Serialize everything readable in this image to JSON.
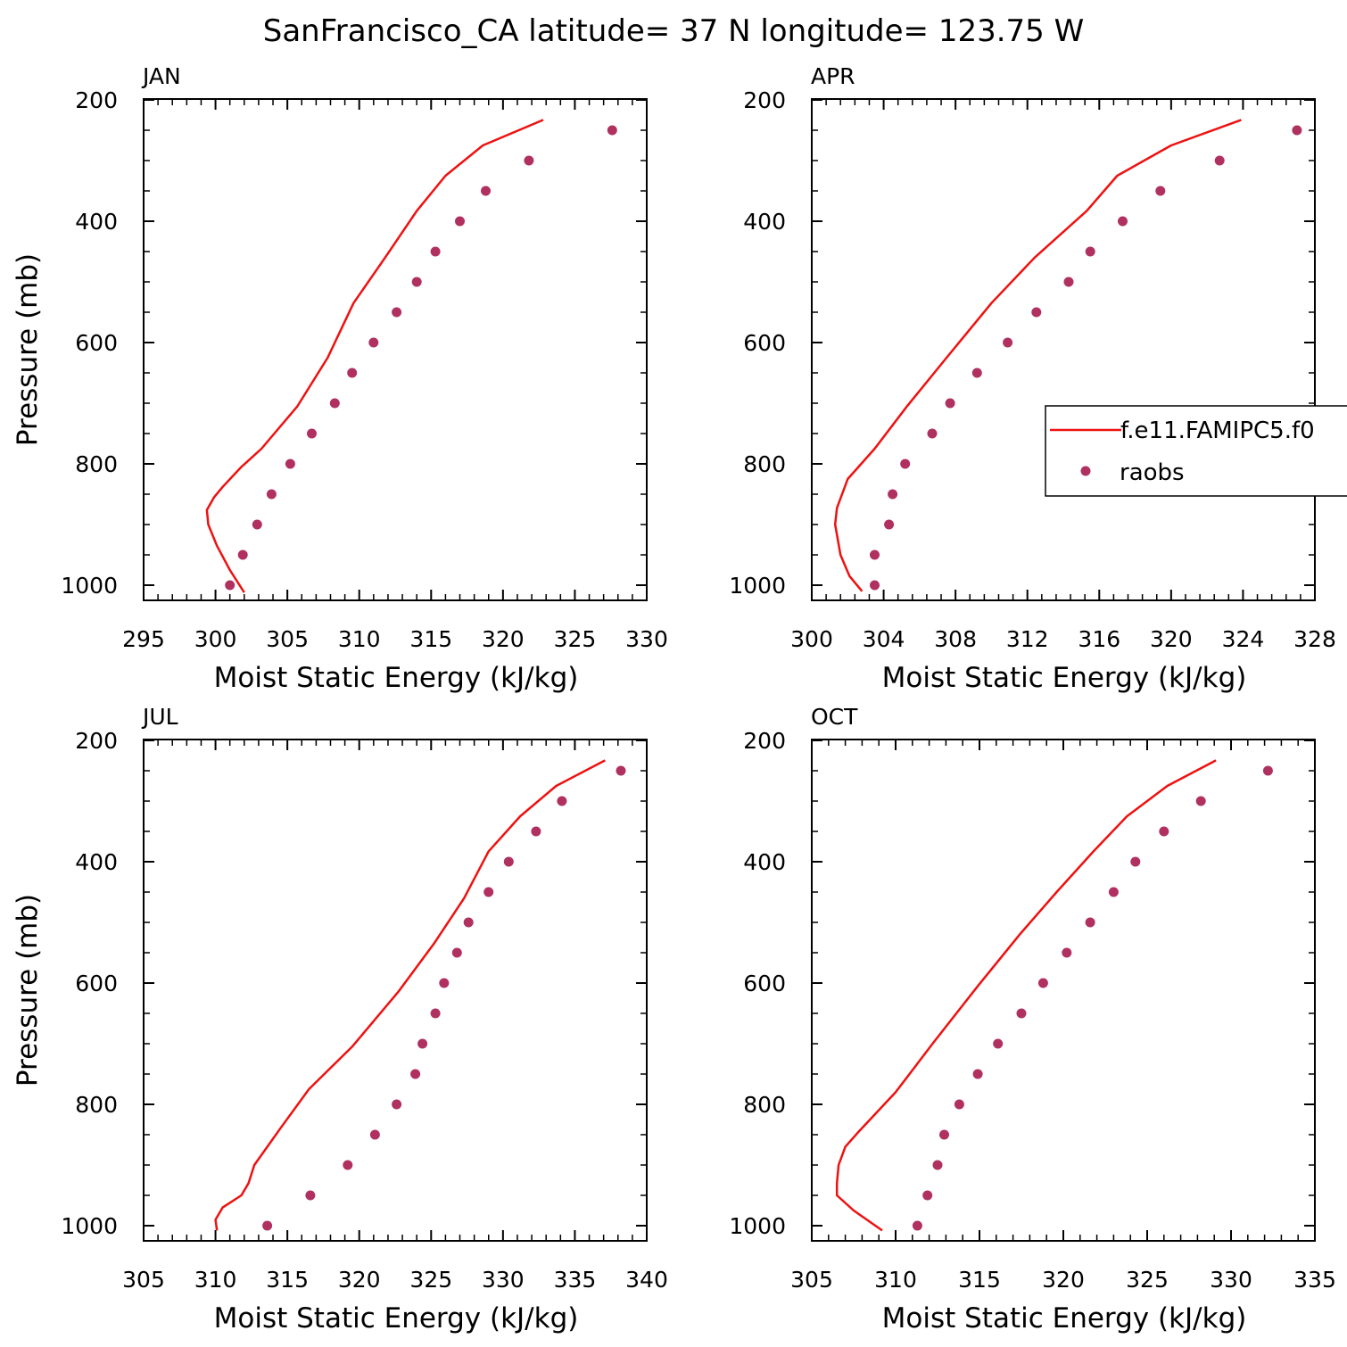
{
  "title": "SanFrancisco_CA  latitude= 37 N longitude= 123.75 W",
  "colors": {
    "model": "#ee1111",
    "obs": "#b03060",
    "axis": "#000000"
  },
  "legend": {
    "placement": "right-middle of APR panel",
    "entries": [
      {
        "label": "f.e11.FAMIPC5.f0",
        "style": "line",
        "color": "#ee1111"
      },
      {
        "label": "raobs",
        "style": "marker",
        "color": "#b03060"
      }
    ]
  },
  "chart_data": [
    {
      "type": "line",
      "panel_label": "JAN",
      "xlabel": "Moist Static Energy (kJ/kg)",
      "ylabel": "Pressure (mb)",
      "xlim": [
        295,
        330
      ],
      "xticks": [
        "295",
        "300",
        "305",
        "310",
        "315",
        "320",
        "325",
        "330"
      ],
      "ylim": [
        200,
        1000
      ],
      "yticks": [
        "200",
        "400",
        "600",
        "800",
        "1000"
      ],
      "series": [
        {
          "x": [
            322.8,
            318.6,
            316.0,
            314.0,
            311.8,
            309.6,
            307.8,
            305.7,
            303.2,
            301.8,
            300.5,
            299.9,
            299.4,
            299.5,
            300.1,
            301.0,
            302.0
          ],
          "y": [
            233,
            275,
            325,
            383,
            460,
            535,
            625,
            705,
            775,
            805,
            838,
            855,
            876,
            900,
            935,
            975,
            1012
          ]
        },
        {
          "x": [
            327.6,
            321.8,
            318.8,
            317.0,
            315.3,
            314.0,
            312.6,
            311.0,
            309.5,
            308.3,
            306.7,
            305.2,
            303.9,
            302.9,
            301.9,
            301.0
          ],
          "y": [
            250,
            300,
            350,
            400,
            450,
            500,
            550,
            600,
            650,
            700,
            750,
            800,
            850,
            900,
            950,
            1000
          ]
        }
      ]
    },
    {
      "type": "line",
      "panel_label": "APR",
      "xlabel": "Moist Static Energy (kJ/kg)",
      "ylabel": "",
      "xlim": [
        300,
        328
      ],
      "xticks": [
        "300",
        "304",
        "308",
        "312",
        "316",
        "320",
        "324",
        "328"
      ],
      "ylim": [
        200,
        1000
      ],
      "yticks": [
        "200",
        "400",
        "600",
        "800",
        "1000"
      ],
      "series": [
        {
          "x": [
            323.9,
            320.0,
            317.0,
            315.3,
            312.4,
            310.0,
            307.5,
            305.3,
            303.5,
            302.0,
            301.4,
            301.3,
            301.6,
            302.1,
            302.8
          ],
          "y": [
            233,
            275,
            325,
            383,
            460,
            535,
            625,
            705,
            775,
            825,
            873,
            900,
            950,
            985,
            1010
          ]
        },
        {
          "x": [
            327.0,
            322.7,
            319.4,
            317.3,
            315.5,
            314.3,
            312.5,
            310.9,
            309.2,
            307.7,
            306.7,
            305.2,
            304.5,
            304.3,
            303.5,
            303.5
          ],
          "y": [
            250,
            300,
            350,
            400,
            450,
            500,
            550,
            600,
            650,
            700,
            750,
            800,
            850,
            900,
            950,
            1000
          ]
        }
      ]
    },
    {
      "type": "line",
      "panel_label": "JUL",
      "xlabel": "Moist Static Energy (kJ/kg)",
      "ylabel": "Pressure (mb)",
      "xlim": [
        305,
        340
      ],
      "xticks": [
        "305",
        "310",
        "315",
        "320",
        "325",
        "330",
        "335",
        "340"
      ],
      "ylim": [
        200,
        1000
      ],
      "yticks": [
        "200",
        "400",
        "600",
        "800",
        "1000"
      ],
      "series": [
        {
          "x": [
            337.1,
            333.7,
            331.2,
            329.0,
            327.3,
            325.2,
            322.7,
            319.5,
            316.5,
            314.5,
            312.7,
            312.3,
            311.8,
            310.5,
            310.0,
            310.1
          ],
          "y": [
            233,
            275,
            325,
            383,
            460,
            535,
            615,
            705,
            775,
            840,
            900,
            930,
            950,
            970,
            990,
            1008
          ]
        },
        {
          "x": [
            338.2,
            334.1,
            332.3,
            330.4,
            329.0,
            327.6,
            326.8,
            325.9,
            325.3,
            324.4,
            323.9,
            322.6,
            321.1,
            319.2,
            316.6,
            313.6
          ],
          "y": [
            250,
            300,
            350,
            400,
            450,
            500,
            550,
            600,
            650,
            700,
            750,
            800,
            850,
            900,
            950,
            1000
          ]
        }
      ]
    },
    {
      "type": "line",
      "panel_label": "OCT",
      "xlabel": "Moist Static Energy (kJ/kg)",
      "ylabel": "",
      "xlim": [
        305,
        335
      ],
      "xticks": [
        "305",
        "310",
        "315",
        "320",
        "325",
        "330",
        "335"
      ],
      "ylim": [
        200,
        1000
      ],
      "yticks": [
        "200",
        "400",
        "600",
        "800",
        "1000"
      ],
      "series": [
        {
          "x": [
            329.1,
            326.2,
            323.8,
            321.8,
            319.6,
            317.4,
            314.9,
            312.2,
            310.0,
            307.8,
            307.0,
            306.6,
            306.5,
            306.5,
            307.5,
            309.2
          ],
          "y": [
            233,
            275,
            325,
            383,
            450,
            520,
            605,
            700,
            780,
            845,
            870,
            900,
            930,
            950,
            975,
            1008
          ]
        },
        {
          "x": [
            332.2,
            328.2,
            326.0,
            324.3,
            323.0,
            321.6,
            320.2,
            318.8,
            317.5,
            316.1,
            314.9,
            313.8,
            312.9,
            312.5,
            311.9,
            311.3
          ],
          "y": [
            250,
            300,
            350,
            400,
            450,
            500,
            550,
            600,
            650,
            700,
            750,
            800,
            850,
            900,
            950,
            1000
          ]
        }
      ]
    }
  ]
}
